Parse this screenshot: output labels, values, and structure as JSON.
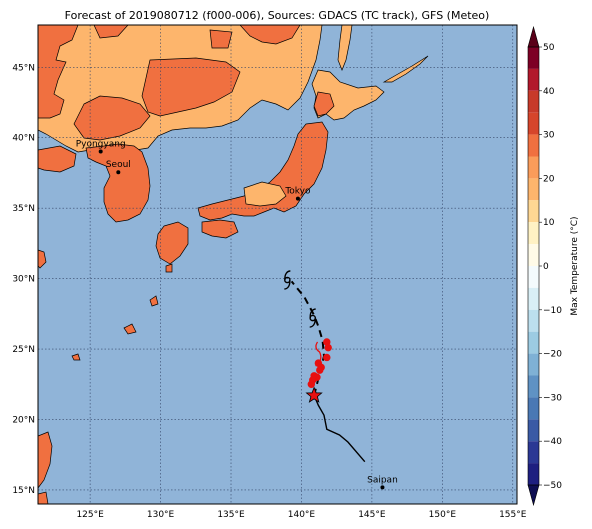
{
  "title": "Forecast of 2019080712 (f000-006), Sources: GDACS (TC track), GFS (Meteo)",
  "colors": {
    "ocean": "#90b4d8",
    "land_hot": "#f07040",
    "land_warm": "#fdb56c",
    "coast": "#000000",
    "track": "#000000",
    "forecast_marker": "#e81010",
    "grid": "#334466"
  },
  "map": {
    "lon_range": [
      121.3,
      155.3
    ],
    "lat_range": [
      14.0,
      48.0
    ],
    "lon_ticks": [
      {
        "value": 125,
        "label": "125°E"
      },
      {
        "value": 130,
        "label": "130°E"
      },
      {
        "value": 135,
        "label": "135°E"
      },
      {
        "value": 140,
        "label": "140°E"
      },
      {
        "value": 145,
        "label": "145°E"
      },
      {
        "value": 150,
        "label": "150°E"
      },
      {
        "value": 155,
        "label": "155°E"
      }
    ],
    "lat_ticks": [
      {
        "value": 15,
        "label": "15°N"
      },
      {
        "value": 20,
        "label": "20°N"
      },
      {
        "value": 25,
        "label": "25°N"
      },
      {
        "value": 30,
        "label": "30°N"
      },
      {
        "value": 35,
        "label": "35°N"
      },
      {
        "value": 40,
        "label": "40°N"
      },
      {
        "value": 45,
        "label": "45°N"
      }
    ],
    "cities": [
      {
        "name": "Pyongyang",
        "lon": 125.75,
        "lat": 39.02
      },
      {
        "name": "Seoul",
        "lon": 127.0,
        "lat": 37.55
      },
      {
        "name": "Tokyo",
        "lon": 139.75,
        "lat": 35.68
      },
      {
        "name": "Saipan",
        "lon": 145.75,
        "lat": 15.18
      }
    ],
    "track_past": [
      [
        144.5,
        17.0
      ],
      [
        143.3,
        18.4
      ],
      [
        142.7,
        18.9
      ],
      [
        141.8,
        19.3
      ],
      [
        141.6,
        20.3
      ],
      [
        141.2,
        21.0
      ],
      [
        140.9,
        21.7
      ]
    ],
    "track_forecast": [
      [
        140.9,
        21.7
      ],
      [
        141.6,
        24.5
      ],
      [
        141.5,
        25.6
      ],
      [
        141.2,
        26.6
      ],
      [
        140.9,
        27.4
      ],
      [
        140.2,
        28.7
      ],
      [
        139.3,
        29.8
      ]
    ],
    "typhoon_symbols": [
      {
        "lon": 139.0,
        "lat": 29.9
      },
      {
        "lon": 140.8,
        "lat": 27.2
      }
    ],
    "current_position": {
      "lon": 140.9,
      "lat": 21.7
    },
    "forecast_points": [
      [
        141.1,
        23.0
      ],
      [
        141.4,
        23.7
      ],
      [
        141.8,
        24.4
      ],
      [
        141.9,
        25.1
      ],
      [
        141.8,
        25.5
      ],
      [
        141.3,
        23.5
      ],
      [
        140.8,
        22.8
      ],
      [
        140.7,
        22.5
      ],
      [
        140.9,
        23.1
      ],
      [
        141.2,
        24.0
      ]
    ]
  },
  "colorbar": {
    "label": "Max Temperature (°C)",
    "min": -50,
    "max": 50,
    "ticks": [
      {
        "value": 50,
        "label": "50"
      },
      {
        "value": 40,
        "label": "40"
      },
      {
        "value": 30,
        "label": "30"
      },
      {
        "value": 20,
        "label": "20"
      },
      {
        "value": 10,
        "label": "10"
      },
      {
        "value": 0,
        "label": "0"
      },
      {
        "value": -10,
        "label": "−10"
      },
      {
        "value": -20,
        "label": "−20"
      },
      {
        "value": -30,
        "label": "−30"
      },
      {
        "value": -40,
        "label": "−40"
      },
      {
        "value": -50,
        "label": "−50"
      }
    ],
    "bands": [
      {
        "from": 45,
        "to": 50,
        "color": "#7d0025"
      },
      {
        "from": 40,
        "to": 45,
        "color": "#b2182b"
      },
      {
        "from": 35,
        "to": 40,
        "color": "#c73a2a"
      },
      {
        "from": 30,
        "to": 35,
        "color": "#d6452b"
      },
      {
        "from": 25,
        "to": 30,
        "color": "#f07040"
      },
      {
        "from": 20,
        "to": 25,
        "color": "#fa9c5a"
      },
      {
        "from": 15,
        "to": 20,
        "color": "#fdb56c"
      },
      {
        "from": 10,
        "to": 15,
        "color": "#fed793"
      },
      {
        "from": 5,
        "to": 10,
        "color": "#fff2c4"
      },
      {
        "from": 0,
        "to": 5,
        "color": "#fffbe8"
      },
      {
        "from": -5,
        "to": 0,
        "color": "#f4fbfd"
      },
      {
        "from": -10,
        "to": -5,
        "color": "#d9eff6"
      },
      {
        "from": -15,
        "to": -10,
        "color": "#bcdfee"
      },
      {
        "from": -20,
        "to": -15,
        "color": "#9ccbe2"
      },
      {
        "from": -25,
        "to": -20,
        "color": "#7fb1d5"
      },
      {
        "from": -30,
        "to": -25,
        "color": "#5f92c4"
      },
      {
        "from": -35,
        "to": -30,
        "color": "#4a78b4"
      },
      {
        "from": -40,
        "to": -35,
        "color": "#3a5aa5"
      },
      {
        "from": -45,
        "to": -40,
        "color": "#2b3894"
      },
      {
        "from": -50,
        "to": -45,
        "color": "#1e1f80"
      }
    ],
    "top_arrow_color": "#5a0019",
    "bottom_arrow_color": "#0e0e52"
  }
}
